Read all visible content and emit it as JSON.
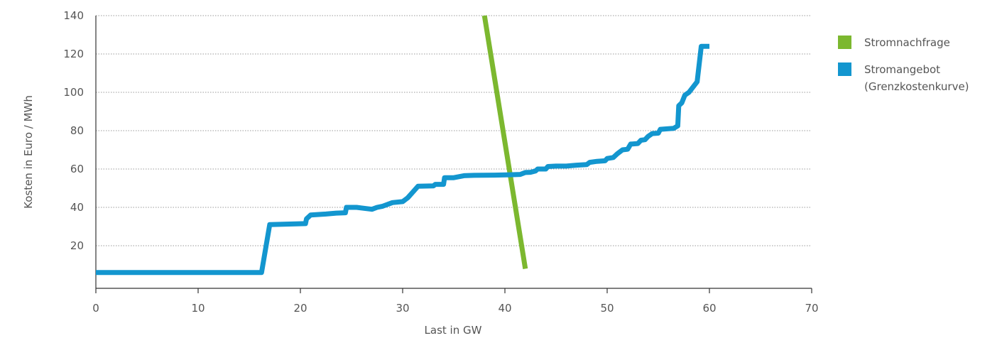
{
  "chart_data": {
    "type": "line",
    "title": "",
    "xlabel": "Last in GW",
    "ylabel": "Kosten in Euro / MWh",
    "xlim": [
      0,
      70
    ],
    "ylim": [
      0,
      140
    ],
    "x_ticks": [
      0,
      10,
      20,
      30,
      40,
      50,
      60,
      70
    ],
    "y_ticks": [
      20,
      40,
      60,
      80,
      100,
      120,
      140
    ],
    "grid": "horizontal dotted",
    "legend_position": "right",
    "series": [
      {
        "name": "Stromnachfrage",
        "color": "#7cb82f",
        "points": [
          [
            38,
            140
          ],
          [
            42,
            8
          ]
        ]
      },
      {
        "name_lines": [
          "Stromangebot",
          "(Grenzkostenkurve)"
        ],
        "color": "#1396cf",
        "points": [
          [
            0,
            6
          ],
          [
            16.2,
            6
          ],
          [
            17,
            31
          ],
          [
            20.5,
            31.5
          ],
          [
            20.6,
            34
          ],
          [
            21,
            36
          ],
          [
            22.5,
            36.5
          ],
          [
            23.5,
            37
          ],
          [
            24.4,
            37.2
          ],
          [
            24.5,
            40
          ],
          [
            25.5,
            40
          ],
          [
            27,
            39
          ],
          [
            27.5,
            40
          ],
          [
            28,
            40.5
          ],
          [
            29,
            42.5
          ],
          [
            30,
            43
          ],
          [
            30.5,
            45
          ],
          [
            31,
            48
          ],
          [
            31.5,
            51
          ],
          [
            33,
            51.2
          ],
          [
            33.2,
            52
          ],
          [
            34,
            52
          ],
          [
            34.1,
            55.5
          ],
          [
            35,
            55.5
          ],
          [
            36,
            56.5
          ],
          [
            37,
            56.7
          ],
          [
            39,
            56.8
          ],
          [
            40.5,
            57
          ],
          [
            41.5,
            57.2
          ],
          [
            42,
            58.2
          ],
          [
            42.5,
            58.3
          ],
          [
            43,
            59
          ],
          [
            43.2,
            60
          ],
          [
            44,
            60
          ],
          [
            44.2,
            61.3
          ],
          [
            45,
            61.5
          ],
          [
            46,
            61.5
          ],
          [
            47,
            62
          ],
          [
            48,
            62.3
          ],
          [
            48.3,
            63.5
          ],
          [
            49,
            64
          ],
          [
            49.8,
            64.3
          ],
          [
            50,
            65.5
          ],
          [
            50.6,
            66
          ],
          [
            51,
            68
          ],
          [
            51.5,
            70
          ],
          [
            52,
            70.3
          ],
          [
            52.3,
            73
          ],
          [
            53,
            73.3
          ],
          [
            53.3,
            75
          ],
          [
            53.7,
            75.3
          ],
          [
            54,
            77
          ],
          [
            54.4,
            78.5
          ],
          [
            55,
            78.7
          ],
          [
            55.2,
            80.7
          ],
          [
            56,
            81
          ],
          [
            56.5,
            81.2
          ],
          [
            56.9,
            82.5
          ],
          [
            57,
            93
          ],
          [
            57.3,
            94.5
          ],
          [
            57.6,
            98.5
          ],
          [
            58,
            100
          ],
          [
            58.8,
            105.5
          ],
          [
            59.2,
            124
          ],
          [
            60,
            124
          ]
        ]
      }
    ]
  }
}
